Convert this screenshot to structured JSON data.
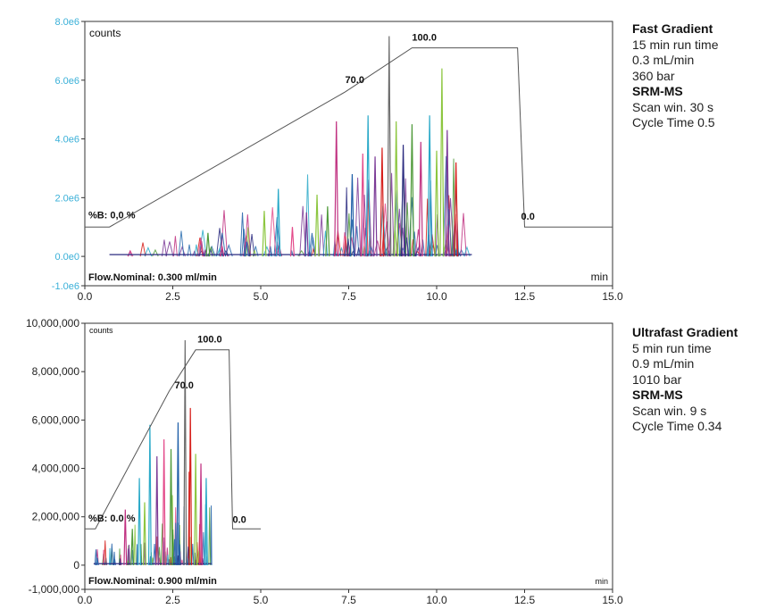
{
  "chart_data": [
    {
      "type": "line",
      "y_unit_label": "counts",
      "x_unit_label": "min",
      "xlim": [
        0,
        15
      ],
      "ylim": [
        -1000000,
        8000000
      ],
      "x_ticks": [
        "0.0",
        "2.5",
        "5.0",
        "7.5",
        "10.0",
        "12.5",
        "15.0"
      ],
      "y_ticks": [
        {
          "value": 8000000,
          "label": "8.0e6"
        },
        {
          "value": 6000000,
          "label": "6.0e6"
        },
        {
          "value": 4000000,
          "label": "4.0e6"
        },
        {
          "value": 2000000,
          "label": "2.0e6"
        },
        {
          "value": 0,
          "label": "0.0e0"
        },
        {
          "value": -1000000,
          "label": "-1.0e6"
        }
      ],
      "tick_color": "#3ab0d8",
      "gradient_profile": {
        "x": [
          0,
          0.7,
          7.4,
          9.3,
          12.3,
          12.5,
          15
        ],
        "y": [
          1000000,
          1000000,
          5600000,
          7100000,
          7100000,
          1000000,
          1000000
        ]
      },
      "gradient_labels": [
        {
          "text": "%B: 0,0 %",
          "x": 0.1,
          "y": 1300000
        },
        {
          "text": "70.0",
          "x": 7.4,
          "y": 5900000
        },
        {
          "text": "100.0",
          "x": 9.3,
          "y": 7350000
        },
        {
          "text": "0.0",
          "x": 12.4,
          "y": 1250000
        }
      ],
      "flow_label": "Flow.Nominal: 0.300 ml/min",
      "trace_range": [
        0.7,
        11.0
      ],
      "trace_peaks": [
        {
          "x": 3.5,
          "y": 800000,
          "color": "#4f9a3a"
        },
        {
          "x": 3.9,
          "y": 350000,
          "color": "#c03080"
        },
        {
          "x": 4.6,
          "y": 500000,
          "color": "#2b6fb0"
        },
        {
          "x": 5.1,
          "y": 1550000,
          "color": "#8cc63f"
        },
        {
          "x": 5.5,
          "y": 2300000,
          "color": "#2aa9c8"
        },
        {
          "x": 5.9,
          "y": 1000000,
          "color": "#e34a8a"
        },
        {
          "x": 6.3,
          "y": 1500000,
          "color": "#7b3a96"
        },
        {
          "x": 6.6,
          "y": 2100000,
          "color": "#8cc63f"
        },
        {
          "x": 6.9,
          "y": 1700000,
          "color": "#4f9a3a"
        },
        {
          "x": 7.15,
          "y": 4600000,
          "color": "#c03080"
        },
        {
          "x": 7.6,
          "y": 2800000,
          "color": "#1f5fa8"
        },
        {
          "x": 7.9,
          "y": 3500000,
          "color": "#e34a8a"
        },
        {
          "x": 8.05,
          "y": 4800000,
          "color": "#2aa9c8"
        },
        {
          "x": 8.25,
          "y": 3400000,
          "color": "#7b3a96"
        },
        {
          "x": 8.45,
          "y": 3700000,
          "color": "#d6201c"
        },
        {
          "x": 8.65,
          "y": 7500000,
          "color": "#6b6b6b"
        },
        {
          "x": 8.85,
          "y": 4600000,
          "color": "#8cc63f"
        },
        {
          "x": 9.05,
          "y": 3800000,
          "color": "#2b2b80"
        },
        {
          "x": 9.3,
          "y": 4500000,
          "color": "#4f9a3a"
        },
        {
          "x": 9.55,
          "y": 3900000,
          "color": "#c03080"
        },
        {
          "x": 9.8,
          "y": 4800000,
          "color": "#2aa9c8"
        },
        {
          "x": 10.0,
          "y": 3600000,
          "color": "#8cc63f"
        },
        {
          "x": 10.15,
          "y": 6400000,
          "color": "#8cc63f"
        },
        {
          "x": 10.3,
          "y": 4300000,
          "color": "#7b3a96"
        },
        {
          "x": 10.55,
          "y": 3200000,
          "color": "#d6201c"
        }
      ]
    },
    {
      "type": "line",
      "y_unit_label": "counts",
      "x_unit_label": "min",
      "xlim": [
        0,
        15
      ],
      "ylim": [
        -1000000,
        10000000
      ],
      "x_ticks": [
        "0.0",
        "2.5",
        "5.0",
        "7.5",
        "10.0",
        "12.5",
        "15.0"
      ],
      "y_ticks": [
        {
          "value": 10000000,
          "label": "10,000,000"
        },
        {
          "value": 8000000,
          "label": "8,000,000"
        },
        {
          "value": 6000000,
          "label": "6,000,000"
        },
        {
          "value": 4000000,
          "label": "4,000,000"
        },
        {
          "value": 2000000,
          "label": "2,000,000"
        },
        {
          "value": 0,
          "label": "0"
        },
        {
          "value": -1000000,
          "label": "-1,000,000"
        }
      ],
      "tick_color": "#222222",
      "gradient_profile": {
        "x": [
          0,
          0.3,
          2.4,
          3.15,
          4.1,
          4.2,
          5.0
        ],
        "y": [
          1500000,
          1500000,
          7200000,
          8900000,
          8900000,
          1500000,
          1500000
        ]
      },
      "gradient_labels": [
        {
          "text": "%B: 0.0 %",
          "x": 0.1,
          "y": 1800000
        },
        {
          "text": "70.0",
          "x": 2.55,
          "y": 7300000
        },
        {
          "text": "100.0",
          "x": 3.2,
          "y": 9200000
        },
        {
          "text": "0.0",
          "x": 4.2,
          "y": 1750000
        }
      ],
      "flow_label": "Flow.Nominal: 0.900 ml/min",
      "trace_range": [
        0.25,
        3.6
      ],
      "trace_peaks": [
        {
          "x": 0.35,
          "y": 300000,
          "color": "#2b6fb0"
        },
        {
          "x": 1.15,
          "y": 2300000,
          "color": "#c03080"
        },
        {
          "x": 1.35,
          "y": 1500000,
          "color": "#4f9a3a"
        },
        {
          "x": 1.55,
          "y": 3600000,
          "color": "#2aa9c8"
        },
        {
          "x": 1.7,
          "y": 2600000,
          "color": "#8cc63f"
        },
        {
          "x": 1.85,
          "y": 5800000,
          "color": "#2aa9c8"
        },
        {
          "x": 2.05,
          "y": 4500000,
          "color": "#7b3a96"
        },
        {
          "x": 2.25,
          "y": 5200000,
          "color": "#e34a8a"
        },
        {
          "x": 2.45,
          "y": 4800000,
          "color": "#4f9a3a"
        },
        {
          "x": 2.65,
          "y": 5900000,
          "color": "#1f5fa8"
        },
        {
          "x": 2.85,
          "y": 9300000,
          "color": "#6b6b6b"
        },
        {
          "x": 3.0,
          "y": 6500000,
          "color": "#d6201c"
        },
        {
          "x": 3.15,
          "y": 4600000,
          "color": "#8cc63f"
        },
        {
          "x": 3.3,
          "y": 4200000,
          "color": "#c03080"
        },
        {
          "x": 3.45,
          "y": 3600000,
          "color": "#2aa9c8"
        }
      ]
    }
  ],
  "info_panels": [
    {
      "lines": [
        {
          "text": "Fast Gradient",
          "bold": true
        },
        {
          "text": "15 min run time",
          "bold": false
        },
        {
          "text": "0.3 mL/min",
          "bold": false
        },
        {
          "text": "360 bar",
          "bold": false
        },
        {
          "text": "SRM-MS",
          "bold": true
        },
        {
          "text": "Scan win. 30 s",
          "bold": false
        },
        {
          "text": "Cycle Time 0.5",
          "bold": false
        }
      ]
    },
    {
      "lines": [
        {
          "text": "Ultrafast Gradient",
          "bold": true
        },
        {
          "text": "5 min run time",
          "bold": false
        },
        {
          "text": "0.9 mL/min",
          "bold": false
        },
        {
          "text": "1010 bar",
          "bold": false
        },
        {
          "text": "SRM-MS",
          "bold": true
        },
        {
          "text": "Scan win. 9 s",
          "bold": false
        },
        {
          "text": "Cycle Time 0.34",
          "bold": false
        }
      ]
    }
  ]
}
